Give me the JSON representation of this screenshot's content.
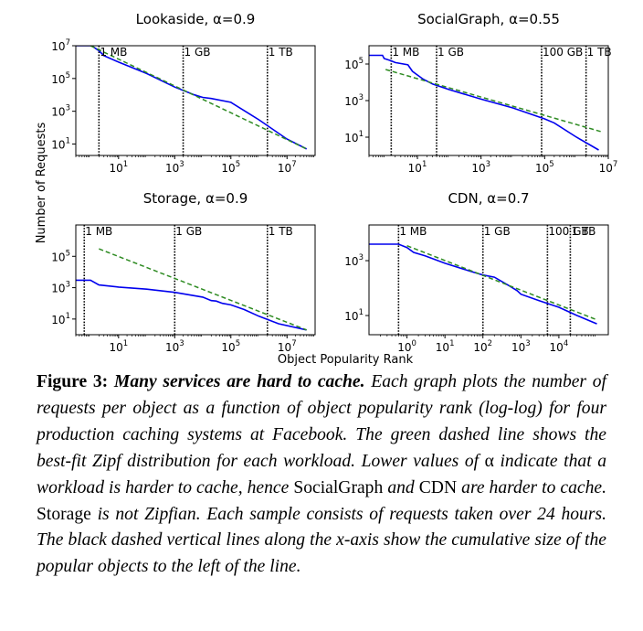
{
  "chart_data": [
    {
      "type": "line",
      "title": "Lookaside, α=0.9",
      "xscale": "log",
      "yscale": "log",
      "xlim": [
        0.3,
        100000000
      ],
      "ylim": [
        2,
        10000000
      ],
      "xticks": [
        {
          "v": 10,
          "b": "10",
          "e": "1"
        },
        {
          "v": 1000,
          "b": "10",
          "e": "3"
        },
        {
          "v": 100000,
          "b": "10",
          "e": "5"
        },
        {
          "v": 10000000,
          "b": "10",
          "e": "7"
        }
      ],
      "yticks": [
        {
          "v": 10,
          "b": "10",
          "e": "1"
        },
        {
          "v": 1000,
          "b": "10",
          "e": "3"
        },
        {
          "v": 100000,
          "b": "10",
          "e": "5"
        },
        {
          "v": 10000000,
          "b": "10",
          "e": "7"
        }
      ],
      "series": [
        {
          "style": "solid",
          "color": "#0000ee",
          "x": [
            0.3,
            1,
            1.2,
            2,
            3,
            10,
            100,
            1000,
            5000,
            10000,
            20000,
            100000,
            1000000,
            10000000,
            50000000
          ],
          "y": [
            10000000,
            10000000,
            9000000,
            5000000,
            2500000,
            1000000,
            200000,
            30000,
            10000,
            7000,
            6000,
            3500,
            300,
            20,
            5
          ]
        },
        {
          "style": "dashed",
          "color": "#2e8b22",
          "x": [
            1,
            50000000
          ],
          "y": [
            10000000,
            5
          ]
        }
      ],
      "vlines": [
        {
          "x": 2,
          "label": "1 MB"
        },
        {
          "x": 2000,
          "label": "1 GB"
        },
        {
          "x": 2000000,
          "label": "1 TB"
        }
      ]
    },
    {
      "type": "line",
      "title": "SocialGraph, α=0.55",
      "xscale": "log",
      "yscale": "log",
      "xlim": [
        0.3,
        10000000
      ],
      "ylim": [
        1,
        1000000
      ],
      "xticks": [
        {
          "v": 10,
          "b": "10",
          "e": "1"
        },
        {
          "v": 1000,
          "b": "10",
          "e": "3"
        },
        {
          "v": 100000,
          "b": "10",
          "e": "5"
        },
        {
          "v": 10000000,
          "b": "10",
          "e": "7"
        }
      ],
      "yticks": [
        {
          "v": 10,
          "b": "10",
          "e": "1"
        },
        {
          "v": 1000,
          "b": "10",
          "e": "3"
        },
        {
          "v": 100000,
          "b": "10",
          "e": "5"
        }
      ],
      "series": [
        {
          "style": "solid",
          "color": "#0000ee",
          "x": [
            0.3,
            0.8,
            0.9,
            1.5,
            2,
            5,
            7,
            10,
            15,
            30,
            100,
            1000,
            10000,
            100000,
            200000,
            1000000,
            5000000
          ],
          "y": [
            300000,
            300000,
            200000,
            150000,
            120000,
            90000,
            40000,
            25000,
            15000,
            8000,
            4000,
            1200,
            400,
            100,
            60,
            10,
            2
          ]
        },
        {
          "style": "dashed",
          "color": "#2e8b22",
          "x": [
            1,
            6000000
          ],
          "y": [
            50000,
            20
          ]
        }
      ],
      "vlines": [
        {
          "x": 1.5,
          "label": "1 MB"
        },
        {
          "x": 40,
          "label": "1 GB"
        },
        {
          "x": 80000,
          "label": "100 GB"
        },
        {
          "x": 2000000,
          "label": "1 TB"
        }
      ]
    },
    {
      "type": "line",
      "title": "Storage, α=0.9",
      "xscale": "log",
      "yscale": "log",
      "xlim": [
        0.3,
        100000000
      ],
      "ylim": [
        1,
        10000000
      ],
      "xticks": [
        {
          "v": 10,
          "b": "10",
          "e": "1"
        },
        {
          "v": 1000,
          "b": "10",
          "e": "3"
        },
        {
          "v": 100000,
          "b": "10",
          "e": "5"
        },
        {
          "v": 10000000,
          "b": "10",
          "e": "7"
        }
      ],
      "yticks": [
        {
          "v": 10,
          "b": "10",
          "e": "1"
        },
        {
          "v": 1000,
          "b": "10",
          "e": "3"
        },
        {
          "v": 100000,
          "b": "10",
          "e": "5"
        }
      ],
      "series": [
        {
          "style": "solid",
          "color": "#0000ee",
          "x": [
            0.3,
            1,
            2,
            10,
            100,
            1000,
            10000,
            20000,
            30000,
            50000,
            100000,
            300000,
            1000000,
            5000000,
            50000000
          ],
          "y": [
            3000,
            3000,
            1500,
            1100,
            800,
            500,
            250,
            150,
            140,
            100,
            80,
            40,
            15,
            5,
            2
          ]
        },
        {
          "style": "dashed",
          "color": "#2e8b22",
          "x": [
            2,
            50000000
          ],
          "y": [
            300000,
            2
          ]
        }
      ],
      "vlines": [
        {
          "x": 0.6,
          "label": "1 MB"
        },
        {
          "x": 1000,
          "label": "1 GB"
        },
        {
          "x": 2000000,
          "label": "1 TB"
        }
      ]
    },
    {
      "type": "line",
      "title": "CDN, α=0.7",
      "xscale": "log",
      "yscale": "log",
      "xlim": [
        0.1,
        200000
      ],
      "ylim": [
        2,
        20000
      ],
      "xticks": [
        {
          "v": 1,
          "b": "10",
          "e": "0"
        },
        {
          "v": 10,
          "b": "10",
          "e": "1"
        },
        {
          "v": 100,
          "b": "10",
          "e": "2"
        },
        {
          "v": 1000,
          "b": "10",
          "e": "3"
        },
        {
          "v": 10000,
          "b": "10",
          "e": "4"
        }
      ],
      "yticks": [
        {
          "v": 10,
          "b": "10",
          "e": "1"
        },
        {
          "v": 1000,
          "b": "10",
          "e": "3"
        }
      ],
      "series": [
        {
          "style": "solid",
          "color": "#0000ee",
          "x": [
            0.1,
            0.6,
            1,
            1.5,
            3,
            10,
            50,
            100,
            200,
            500,
            800,
            1000,
            3000,
            10000,
            30000,
            100000
          ],
          "y": [
            4000,
            4000,
            3000,
            2000,
            1500,
            800,
            400,
            300,
            250,
            120,
            80,
            60,
            35,
            20,
            10,
            5
          ]
        },
        {
          "style": "dashed",
          "color": "#2e8b22",
          "x": [
            1,
            100000
          ],
          "y": [
            3500,
            7
          ]
        }
      ],
      "vlines": [
        {
          "x": 0.6,
          "label": "1 MB"
        },
        {
          "x": 100,
          "label": "1 GB"
        },
        {
          "x": 5000,
          "label": "100 GB"
        },
        {
          "x": 20000,
          "label": "1 TB"
        }
      ]
    }
  ],
  "figure": {
    "ylabel": "Number of Requests",
    "xlabel": "Object Popularity Rank"
  },
  "caption": {
    "label": "Figure 3:",
    "headline": "Many services are hard to cache.",
    "part1": "Each graph plots the number of requests per object as a function of object popularity rank (log-log) for four production caching systems at Facebook. The green dashed line shows the best-fit Zipf distribution for each workload. Lower values of",
    "alpha": "α",
    "part2": "indicate that a workload is harder to cache, hence",
    "name1": "SocialGraph",
    "part3": "and",
    "name2": "CDN",
    "part4": "are harder to cache.",
    "name3": "Storage",
    "part5": "is not Zipfian. Each sample consists of requests taken over 24 hours. The black dashed vertical lines along the x-axis show the cumulative size of the popular objects to the left of the line."
  }
}
